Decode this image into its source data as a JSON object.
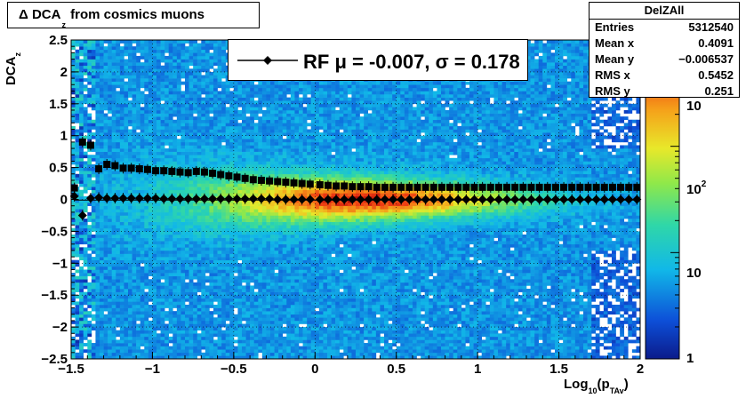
{
  "chart_data": {
    "type": "heatmap",
    "title_parts": [
      "Δ DCA",
      "z",
      " from cosmics muons"
    ],
    "xlabel_parts": [
      "Log",
      "10",
      "(p",
      "TAv",
      ")"
    ],
    "ylabel_parts": [
      "DCA",
      "z"
    ],
    "xlim": [
      -1.5,
      2.0
    ],
    "ylim": [
      -2.5,
      2.5
    ],
    "x_ticks": [
      -1.5,
      -1,
      -0.5,
      0,
      0.5,
      1,
      1.5,
      2
    ],
    "x_tick_labels": [
      "−1.5",
      "−1",
      "−0.5",
      "0",
      "0.5",
      "1",
      "1.5",
      "2"
    ],
    "y_ticks": [
      -2.5,
      -2,
      -1.5,
      -1,
      -0.5,
      0,
      0.5,
      1,
      1.5,
      2,
      2.5
    ],
    "y_tick_labels": [
      "−2.5",
      "−2",
      "−1.5",
      "−1",
      "−0.5",
      "0",
      "0.5",
      "1",
      "1.5",
      "2",
      "2.5"
    ],
    "grid": true,
    "colorbar": {
      "scale": "log",
      "range": [
        1,
        1000
      ],
      "tick_labels": [
        "1",
        "10",
        "10",
        "10"
      ],
      "tick_superscripts": [
        "",
        "",
        "2",
        ""
      ]
    },
    "legend": {
      "placement": "top",
      "label": "RF μ = -0.007, σ =   0.178"
    },
    "series": [
      {
        "marker": "diamond",
        "x": [
          -1.48,
          -1.43,
          -1.38,
          -1.33,
          -1.28,
          -1.23,
          -1.18,
          -1.13,
          -1.08,
          -1.03,
          -0.98,
          -0.93,
          -0.88,
          -0.83,
          -0.78,
          -0.73,
          -0.68,
          -0.63,
          -0.58,
          -0.53,
          -0.48,
          -0.43,
          -0.38,
          -0.33,
          -0.28,
          -0.23,
          -0.18,
          -0.13,
          -0.08,
          -0.03,
          0.03,
          0.08,
          0.13,
          0.18,
          0.23,
          0.28,
          0.33,
          0.38,
          0.43,
          0.48,
          0.53,
          0.58,
          0.63,
          0.68,
          0.73,
          0.78,
          0.83,
          0.88,
          0.93,
          0.98,
          1.03,
          1.08,
          1.13,
          1.18,
          1.23,
          1.28,
          1.33,
          1.38,
          1.43,
          1.48,
          1.53,
          1.58,
          1.63,
          1.68,
          1.73,
          1.78,
          1.83,
          1.88,
          1.93,
          1.98
        ],
        "y": [
          0.05,
          -0.25,
          0.02,
          0.03,
          0.02,
          0.02,
          0.02,
          0.02,
          0.02,
          0.02,
          0.02,
          0.01,
          0.01,
          0.01,
          0.01,
          0.01,
          0.01,
          0.01,
          0.01,
          0.01,
          0.01,
          0.01,
          0.01,
          0.01,
          0.01,
          0.0,
          0.0,
          0.0,
          0.0,
          0.0,
          0.0,
          0.0,
          0.0,
          0.0,
          0.0,
          0.0,
          0.0,
          0.0,
          0.0,
          0.0,
          0.0,
          0.0,
          0.0,
          0.0,
          0.0,
          0.0,
          0.0,
          0.0,
          0.0,
          0.0,
          0.0,
          0.0,
          0.0,
          0.0,
          0.0,
          0.0,
          0.0,
          0.0,
          0.0,
          0.0,
          0.0,
          0.0,
          0.0,
          0.0,
          0.0,
          0.0,
          0.0,
          0.0,
          0.0,
          0.0
        ]
      },
      {
        "marker": "square",
        "x": [
          -1.48,
          -1.43,
          -1.38,
          -1.33,
          -1.28,
          -1.23,
          -1.18,
          -1.13,
          -1.08,
          -1.03,
          -0.98,
          -0.93,
          -0.88,
          -0.83,
          -0.78,
          -0.73,
          -0.68,
          -0.63,
          -0.58,
          -0.53,
          -0.48,
          -0.43,
          -0.38,
          -0.33,
          -0.28,
          -0.23,
          -0.18,
          -0.13,
          -0.08,
          -0.03,
          0.03,
          0.08,
          0.13,
          0.18,
          0.23,
          0.28,
          0.33,
          0.38,
          0.43,
          0.48,
          0.53,
          0.58,
          0.63,
          0.68,
          0.73,
          0.78,
          0.83,
          0.88,
          0.93,
          0.98,
          1.03,
          1.08,
          1.13,
          1.18,
          1.23,
          1.28,
          1.33,
          1.38,
          1.43,
          1.48,
          1.53,
          1.58,
          1.63,
          1.68,
          1.73,
          1.78,
          1.83,
          1.88,
          1.93,
          1.98
        ],
        "y": [
          0.18,
          0.9,
          0.85,
          0.48,
          0.55,
          0.53,
          0.49,
          0.49,
          0.48,
          0.47,
          0.45,
          0.45,
          0.44,
          0.43,
          0.42,
          0.44,
          0.43,
          0.41,
          0.39,
          0.37,
          0.35,
          0.33,
          0.31,
          0.3,
          0.29,
          0.28,
          0.27,
          0.26,
          0.25,
          0.24,
          0.23,
          0.22,
          0.21,
          0.21,
          0.2,
          0.2,
          0.2,
          0.19,
          0.19,
          0.19,
          0.19,
          0.19,
          0.19,
          0.19,
          0.19,
          0.19,
          0.19,
          0.19,
          0.19,
          0.19,
          0.19,
          0.19,
          0.19,
          0.19,
          0.19,
          0.19,
          0.19,
          0.19,
          0.19,
          0.19,
          0.19,
          0.19,
          0.19,
          0.19,
          0.19,
          0.19,
          0.19,
          0.19,
          0.19,
          0.19
        ]
      }
    ]
  },
  "stats": {
    "name": "DelZAll",
    "rows": [
      {
        "label": "Entries",
        "value": "5312540"
      },
      {
        "label": "Mean x",
        "value": "0.4091"
      },
      {
        "label": "Mean y",
        "value": "−0.006537"
      },
      {
        "label": "RMS x",
        "value": "0.5452"
      },
      {
        "label": "RMS y",
        "value": "0.251"
      }
    ]
  }
}
